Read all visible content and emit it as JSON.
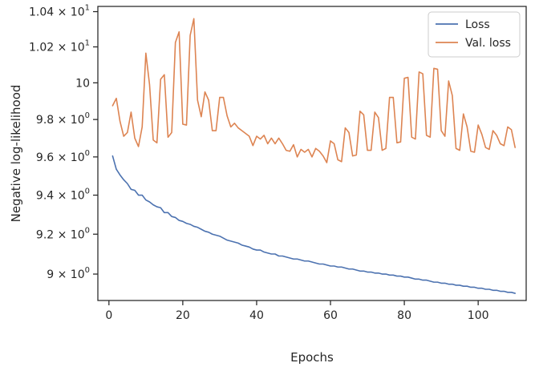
{
  "chart_data": {
    "type": "line",
    "xlabel": "Epochs",
    "ylabel": "Negative log-likelihood",
    "y_scale": "log",
    "xlim": [
      -3,
      113
    ],
    "ylim": [
      8.87,
      10.43
    ],
    "grid": false,
    "legend_position": "top-right",
    "x_ticks": [
      {
        "value": 0,
        "label": "0"
      },
      {
        "value": 20,
        "label": "20"
      },
      {
        "value": 40,
        "label": "40"
      },
      {
        "value": 60,
        "label": "60"
      },
      {
        "value": 80,
        "label": "80"
      },
      {
        "value": 100,
        "label": "100"
      }
    ],
    "y_ticks": [
      {
        "value": 9.0,
        "mant": "9",
        "exp": "0",
        "plain": false
      },
      {
        "value": 9.2,
        "mant": "9.2",
        "exp": "0",
        "plain": false
      },
      {
        "value": 9.4,
        "mant": "9.4",
        "exp": "0",
        "plain": false
      },
      {
        "value": 9.6,
        "mant": "9.6",
        "exp": "0",
        "plain": false
      },
      {
        "value": 9.8,
        "mant": "9.8",
        "exp": "0",
        "plain": false
      },
      {
        "value": 10.0,
        "mant": "10",
        "exp": "1",
        "plain": true
      },
      {
        "value": 10.2,
        "mant": "1.02",
        "exp": "1",
        "plain": false
      },
      {
        "value": 10.4,
        "mant": "1.04",
        "exp": "1",
        "plain": false
      }
    ],
    "x": [
      1,
      2,
      3,
      4,
      5,
      6,
      7,
      8,
      9,
      10,
      11,
      12,
      13,
      14,
      15,
      16,
      17,
      18,
      19,
      20,
      21,
      22,
      23,
      24,
      25,
      26,
      27,
      28,
      29,
      30,
      31,
      32,
      33,
      34,
      35,
      36,
      37,
      38,
      39,
      40,
      41,
      42,
      43,
      44,
      45,
      46,
      47,
      48,
      49,
      50,
      51,
      52,
      53,
      54,
      55,
      56,
      57,
      58,
      59,
      60,
      61,
      62,
      63,
      64,
      65,
      66,
      67,
      68,
      69,
      70,
      71,
      72,
      73,
      74,
      75,
      76,
      77,
      78,
      79,
      80,
      81,
      82,
      83,
      84,
      85,
      86,
      87,
      88,
      89,
      90,
      91,
      92,
      93,
      94,
      95,
      96,
      97,
      98,
      99,
      100,
      101,
      102,
      103,
      104,
      105,
      106,
      107,
      108,
      109,
      110
    ],
    "series": [
      {
        "name": "Loss",
        "color": "#4c72b0",
        "values": [
          9.605,
          9.535,
          9.505,
          9.48,
          9.46,
          9.43,
          9.425,
          9.4,
          9.4,
          9.375,
          9.365,
          9.35,
          9.34,
          9.335,
          9.31,
          9.31,
          9.29,
          9.285,
          9.27,
          9.265,
          9.255,
          9.25,
          9.24,
          9.235,
          9.225,
          9.215,
          9.21,
          9.2,
          9.195,
          9.19,
          9.18,
          9.17,
          9.165,
          9.16,
          9.155,
          9.145,
          9.14,
          9.135,
          9.125,
          9.12,
          9.12,
          9.11,
          9.105,
          9.1,
          9.1,
          9.09,
          9.09,
          9.085,
          9.08,
          9.075,
          9.075,
          9.07,
          9.065,
          9.065,
          9.06,
          9.055,
          9.05,
          9.05,
          9.045,
          9.04,
          9.04,
          9.035,
          9.035,
          9.03,
          9.025,
          9.025,
          9.02,
          9.015,
          9.015,
          9.01,
          9.01,
          9.005,
          9.005,
          9.0,
          9.0,
          8.995,
          8.995,
          8.99,
          8.99,
          8.985,
          8.985,
          8.98,
          8.975,
          8.975,
          8.97,
          8.97,
          8.965,
          8.96,
          8.96,
          8.955,
          8.955,
          8.95,
          8.95,
          8.945,
          8.945,
          8.94,
          8.94,
          8.935,
          8.935,
          8.93,
          8.93,
          8.925,
          8.925,
          8.92,
          8.92,
          8.915,
          8.915,
          8.91,
          8.91,
          8.905
        ]
      },
      {
        "name": "Val. loss",
        "color": "#dd8452",
        "values": [
          9.875,
          9.915,
          9.79,
          9.71,
          9.73,
          9.84,
          9.7,
          9.655,
          9.76,
          10.165,
          9.99,
          9.69,
          9.675,
          10.02,
          10.045,
          9.705,
          9.73,
          10.225,
          10.285,
          9.775,
          9.77,
          10.265,
          10.36,
          9.905,
          9.815,
          9.95,
          9.905,
          9.74,
          9.74,
          9.92,
          9.92,
          9.82,
          9.76,
          9.78,
          9.755,
          9.74,
          9.725,
          9.71,
          9.66,
          9.71,
          9.695,
          9.715,
          9.67,
          9.7,
          9.67,
          9.7,
          9.67,
          9.635,
          9.63,
          9.665,
          9.6,
          9.64,
          9.625,
          9.64,
          9.6,
          9.645,
          9.63,
          9.605,
          9.57,
          9.685,
          9.67,
          9.585,
          9.575,
          9.755,
          9.73,
          9.605,
          9.61,
          9.845,
          9.825,
          9.635,
          9.635,
          9.84,
          9.81,
          9.635,
          9.645,
          9.92,
          9.92,
          9.675,
          9.68,
          10.025,
          10.03,
          9.705,
          9.695,
          10.06,
          10.05,
          9.715,
          9.705,
          10.08,
          10.075,
          9.74,
          9.71,
          10.01,
          9.93,
          9.645,
          9.635,
          9.83,
          9.76,
          9.63,
          9.625,
          9.77,
          9.72,
          9.65,
          9.64,
          9.74,
          9.715,
          9.67,
          9.66,
          9.76,
          9.745,
          9.65
        ]
      }
    ]
  }
}
